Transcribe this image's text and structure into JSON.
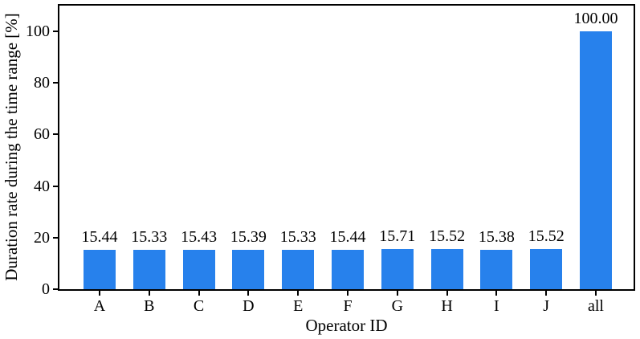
{
  "chart_data": {
    "type": "bar",
    "title": "",
    "categories": [
      "A",
      "B",
      "C",
      "D",
      "E",
      "F",
      "G",
      "H",
      "I",
      "J",
      "all"
    ],
    "values": [
      15.44,
      15.33,
      15.43,
      15.39,
      15.33,
      15.44,
      15.71,
      15.52,
      15.38,
      15.52,
      100.0
    ],
    "value_labels": [
      "15.44",
      "15.33",
      "15.43",
      "15.39",
      "15.33",
      "15.44",
      "15.71",
      "15.52",
      "15.38",
      "15.52",
      "100.00"
    ],
    "xlabel": "Operator ID",
    "ylabel": "Duration rate during the time range [%]",
    "ylim": [
      0,
      110
    ],
    "yticks": [
      0,
      20,
      40,
      60,
      80,
      100
    ],
    "ytick_labels": [
      "0",
      "20",
      "40",
      "60",
      "80",
      "100"
    ],
    "bar_color": "#2781EC",
    "axis_color": "#000000",
    "grid": false,
    "legend_position": "none"
  }
}
